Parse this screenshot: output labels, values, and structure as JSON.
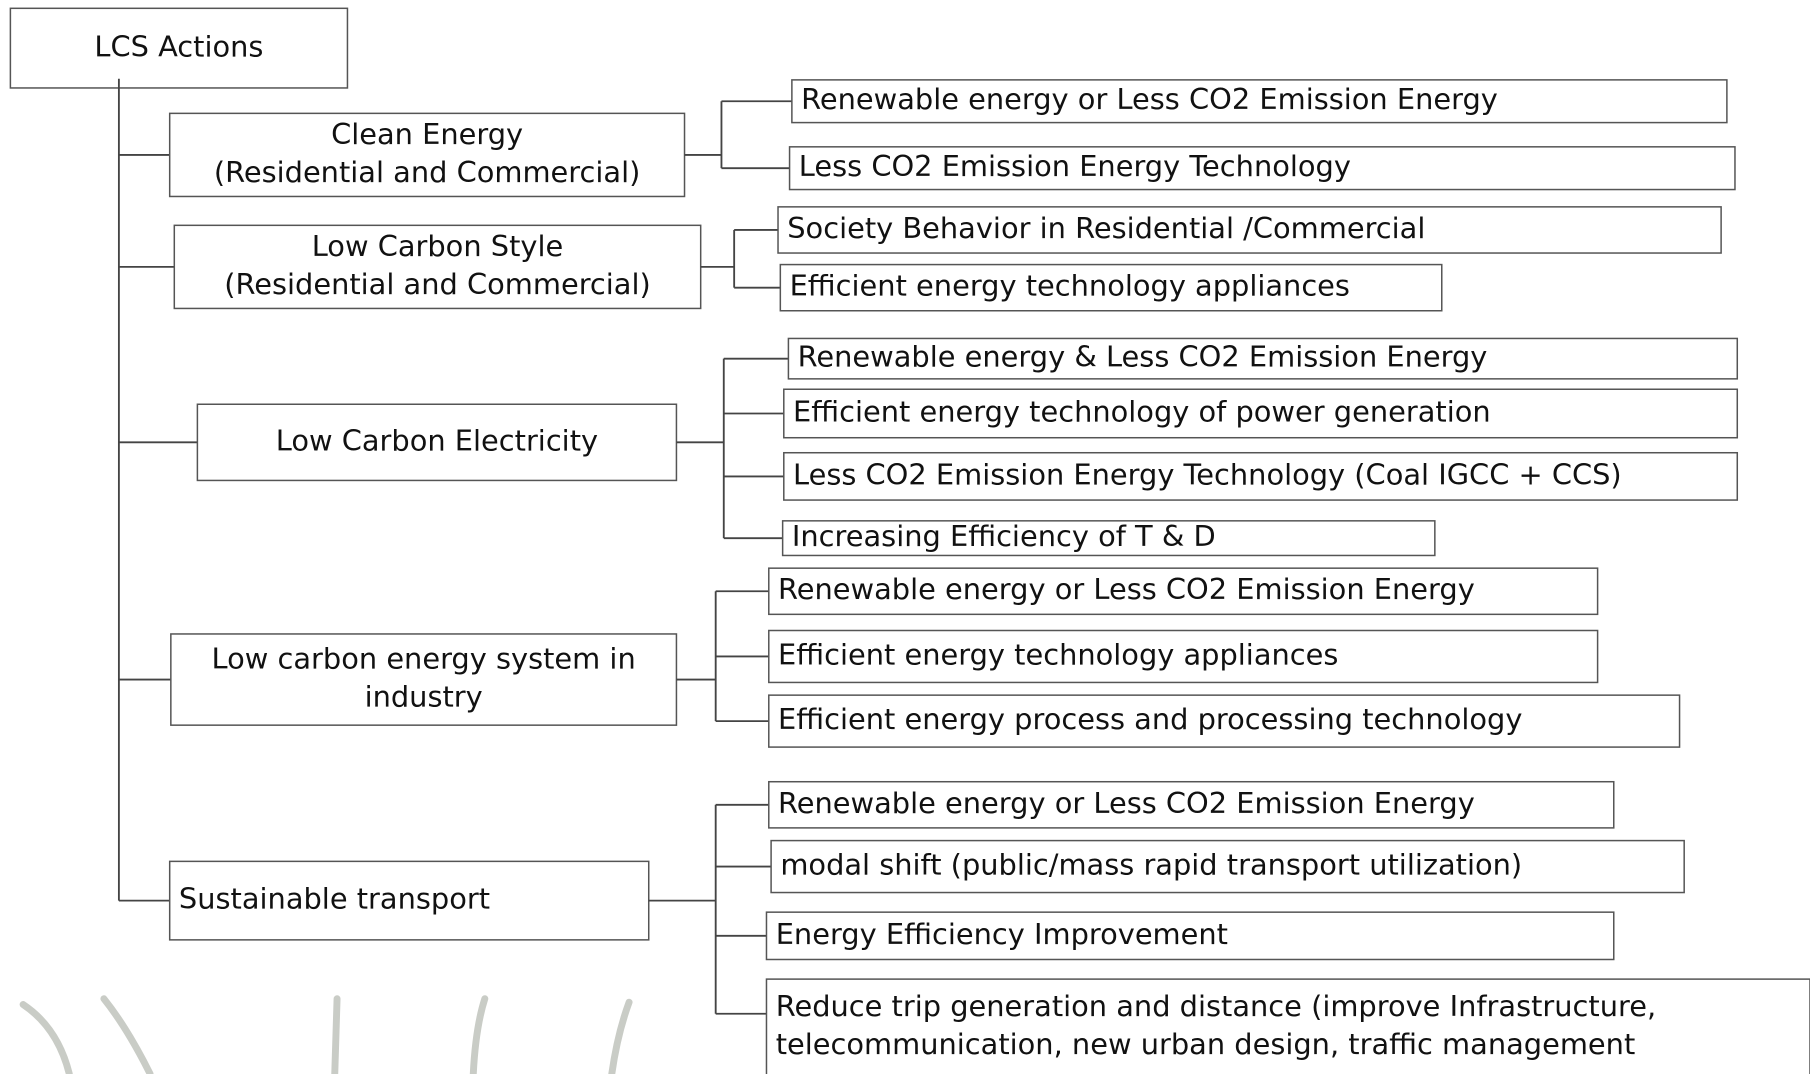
{
  "root": "LCS Actions",
  "groups": [
    {
      "lines": [
        "Clean Energy",
        "(Residential and Commercial)"
      ],
      "children": [
        [
          "Renewable energy or Less CO2 Emission Energy"
        ],
        [
          "Less CO2 Emission Energy Technology"
        ]
      ]
    },
    {
      "lines": [
        "Low Carbon Style",
        "(Residential and Commercial)"
      ],
      "children": [
        [
          "Society Behavior in Residential /Commercial"
        ],
        [
          "Efficient energy technology appliances"
        ]
      ]
    },
    {
      "lines": [
        "Low Carbon Electricity"
      ],
      "children": [
        [
          "Renewable energy & Less CO2 Emission Energy"
        ],
        [
          "Efficient energy technology of power generation"
        ],
        [
          "Less CO2 Emission Energy Technology (Coal IGCC + CCS)"
        ],
        [
          "Increasing Efficiency of T & D"
        ]
      ]
    },
    {
      "lines": [
        "Low carbon energy system in",
        "industry"
      ],
      "children": [
        [
          "Renewable energy or Less CO2 Emission Energy"
        ],
        [
          "Efficient energy technology appliances"
        ],
        [
          "Efficient energy process and processing technology"
        ]
      ]
    },
    {
      "lines": [
        "Sustainable transport"
      ],
      "children": [
        [
          "Renewable energy or Less CO2 Emission Energy"
        ],
        [
          "modal shift (public/mass rapid transport utilization)"
        ],
        [
          "Energy Efficiency Improvement"
        ],
        [
          "Reduce trip generation and distance (improve Infrastructure,",
          "telecommunication,  new urban design, traffic management"
        ]
      ]
    }
  ]
}
